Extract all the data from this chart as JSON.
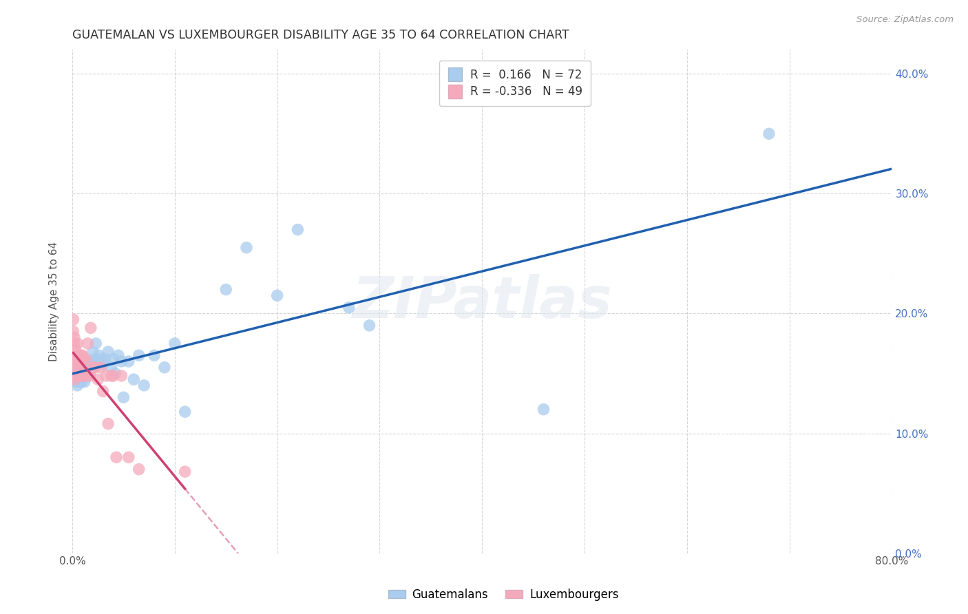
{
  "title": "GUATEMALAN VS LUXEMBOURGER DISABILITY AGE 35 TO 64 CORRELATION CHART",
  "source": "Source: ZipAtlas.com",
  "ylabel": "Disability Age 35 to 64",
  "xlim": [
    0.0,
    0.8
  ],
  "ylim": [
    0.0,
    0.42
  ],
  "xticks": [
    0.0,
    0.1,
    0.2,
    0.3,
    0.4,
    0.5,
    0.6,
    0.7,
    0.8
  ],
  "yticks": [
    0.0,
    0.1,
    0.2,
    0.3,
    0.4
  ],
  "blue_R": 0.166,
  "blue_N": 72,
  "pink_R": -0.336,
  "pink_N": 49,
  "legend_label_blue": "Guatemalans",
  "legend_label_pink": "Luxembourgers",
  "blue_face_color": "#aaccee",
  "pink_face_color": "#f5aabb",
  "blue_line_color": "#2060b0",
  "pink_line_color": "#d04070",
  "background_color": "#ffffff",
  "grid_color": "#cccccc",
  "title_color": "#333333",
  "right_axis_color": "#4472c4",
  "blue_x": [
    0.001,
    0.002,
    0.002,
    0.003,
    0.003,
    0.003,
    0.004,
    0.004,
    0.004,
    0.005,
    0.005,
    0.005,
    0.006,
    0.006,
    0.006,
    0.007,
    0.007,
    0.007,
    0.008,
    0.008,
    0.008,
    0.009,
    0.009,
    0.009,
    0.01,
    0.01,
    0.011,
    0.011,
    0.012,
    0.012,
    0.013,
    0.013,
    0.014,
    0.014,
    0.015,
    0.015,
    0.016,
    0.017,
    0.018,
    0.019,
    0.02,
    0.021,
    0.022,
    0.023,
    0.025,
    0.026,
    0.028,
    0.03,
    0.032,
    0.035,
    0.038,
    0.04,
    0.042,
    0.045,
    0.048,
    0.05,
    0.055,
    0.06,
    0.065,
    0.07,
    0.08,
    0.09,
    0.1,
    0.11,
    0.15,
    0.17,
    0.2,
    0.22,
    0.27,
    0.29,
    0.46,
    0.68
  ],
  "blue_y": [
    0.148,
    0.152,
    0.155,
    0.143,
    0.148,
    0.152,
    0.145,
    0.15,
    0.155,
    0.14,
    0.148,
    0.155,
    0.143,
    0.15,
    0.155,
    0.145,
    0.15,
    0.155,
    0.143,
    0.148,
    0.155,
    0.143,
    0.148,
    0.155,
    0.145,
    0.15,
    0.148,
    0.155,
    0.143,
    0.152,
    0.15,
    0.158,
    0.148,
    0.155,
    0.152,
    0.158,
    0.155,
    0.15,
    0.155,
    0.16,
    0.168,
    0.155,
    0.162,
    0.175,
    0.16,
    0.165,
    0.162,
    0.158,
    0.162,
    0.168,
    0.155,
    0.162,
    0.15,
    0.165,
    0.16,
    0.13,
    0.16,
    0.145,
    0.165,
    0.14,
    0.165,
    0.155,
    0.175,
    0.118,
    0.22,
    0.255,
    0.215,
    0.27,
    0.205,
    0.19,
    0.12,
    0.35
  ],
  "pink_x": [
    0.001,
    0.001,
    0.001,
    0.002,
    0.002,
    0.002,
    0.002,
    0.003,
    0.003,
    0.003,
    0.003,
    0.004,
    0.004,
    0.004,
    0.005,
    0.005,
    0.005,
    0.006,
    0.006,
    0.006,
    0.007,
    0.007,
    0.007,
    0.008,
    0.008,
    0.009,
    0.009,
    0.01,
    0.011,
    0.012,
    0.013,
    0.014,
    0.015,
    0.017,
    0.018,
    0.02,
    0.022,
    0.025,
    0.028,
    0.03,
    0.033,
    0.035,
    0.038,
    0.04,
    0.043,
    0.048,
    0.055,
    0.065,
    0.11
  ],
  "pink_y": [
    0.195,
    0.185,
    0.165,
    0.18,
    0.16,
    0.145,
    0.175,
    0.155,
    0.148,
    0.16,
    0.17,
    0.155,
    0.148,
    0.162,
    0.148,
    0.162,
    0.175,
    0.158,
    0.148,
    0.165,
    0.155,
    0.148,
    0.165,
    0.148,
    0.155,
    0.148,
    0.165,
    0.165,
    0.162,
    0.148,
    0.162,
    0.148,
    0.175,
    0.148,
    0.188,
    0.155,
    0.155,
    0.145,
    0.155,
    0.135,
    0.148,
    0.108,
    0.148,
    0.148,
    0.08,
    0.148,
    0.08,
    0.07,
    0.068
  ]
}
